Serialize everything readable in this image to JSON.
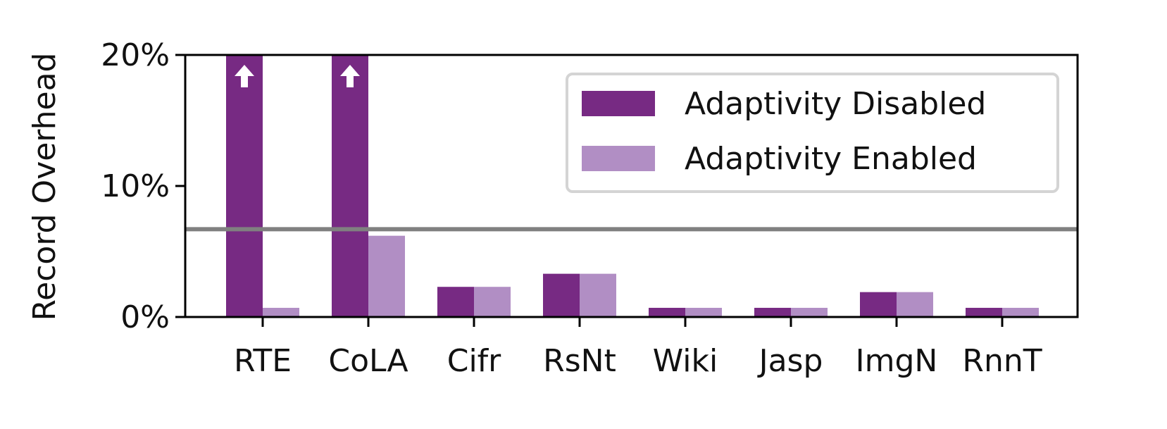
{
  "chart_data": {
    "type": "bar",
    "ylabel": "Record Overhead",
    "ylim": [
      0,
      20
    ],
    "yticks": [
      0,
      10,
      20
    ],
    "ytick_labels": [
      "0%",
      "10%",
      "20%"
    ],
    "categories": [
      "RTE",
      "CoLA",
      "Cifr",
      "RsNt",
      "Wiki",
      "Jasp",
      "ImgN",
      "RnnT"
    ],
    "series": [
      {
        "name": "Adaptivity Disabled",
        "color": "#772a83",
        "values": [
          20,
          20,
          2.3,
          3.3,
          0.7,
          0.7,
          1.9,
          0.7
        ],
        "clipped": [
          true,
          true,
          false,
          false,
          false,
          false,
          false,
          false
        ]
      },
      {
        "name": "Adaptivity Enabled",
        "color": "#b18ec4",
        "values": [
          0.7,
          6.2,
          2.3,
          3.3,
          0.7,
          0.7,
          1.9,
          0.7
        ]
      }
    ],
    "reference_line": {
      "value": 6.7,
      "color": "#808080"
    },
    "grid": false,
    "legend_position": "top-right",
    "clip_indicator": "up-arrow-icon"
  }
}
